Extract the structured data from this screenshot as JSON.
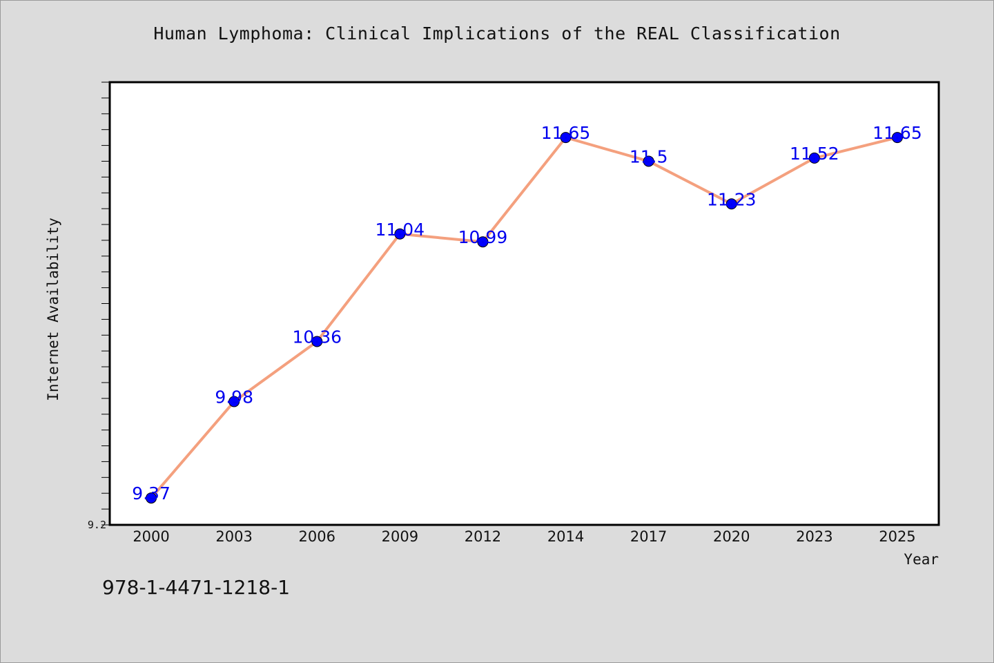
{
  "chart_data": {
    "type": "line",
    "title": "Human Lymphoma: Clinical Implications of the REAL Classification",
    "xlabel": "Year",
    "ylabel": "Internet Availability",
    "x": [
      "2000",
      "2003",
      "2006",
      "2009",
      "2012",
      "2014",
      "2017",
      "2020",
      "2023",
      "2025"
    ],
    "values": [
      9.37,
      9.98,
      10.36,
      11.04,
      10.99,
      11.65,
      11.5,
      11.23,
      11.52,
      11.65
    ],
    "data_labels": [
      "9.37",
      "9.98",
      "10.36",
      "11.04",
      "10.99",
      "11.65",
      "11.5",
      "11.23",
      "11.52",
      "11.65"
    ],
    "y_tick_labels": [
      "9.2"
    ],
    "ylim": [
      9.2,
      12.0
    ],
    "grid": false,
    "legend": "none",
    "line_color": "#f4a07e",
    "marker_color": "#0000ff",
    "label_color": "#0000ee"
  },
  "footer": {
    "isbn": "978-1-4471-1218-1"
  }
}
